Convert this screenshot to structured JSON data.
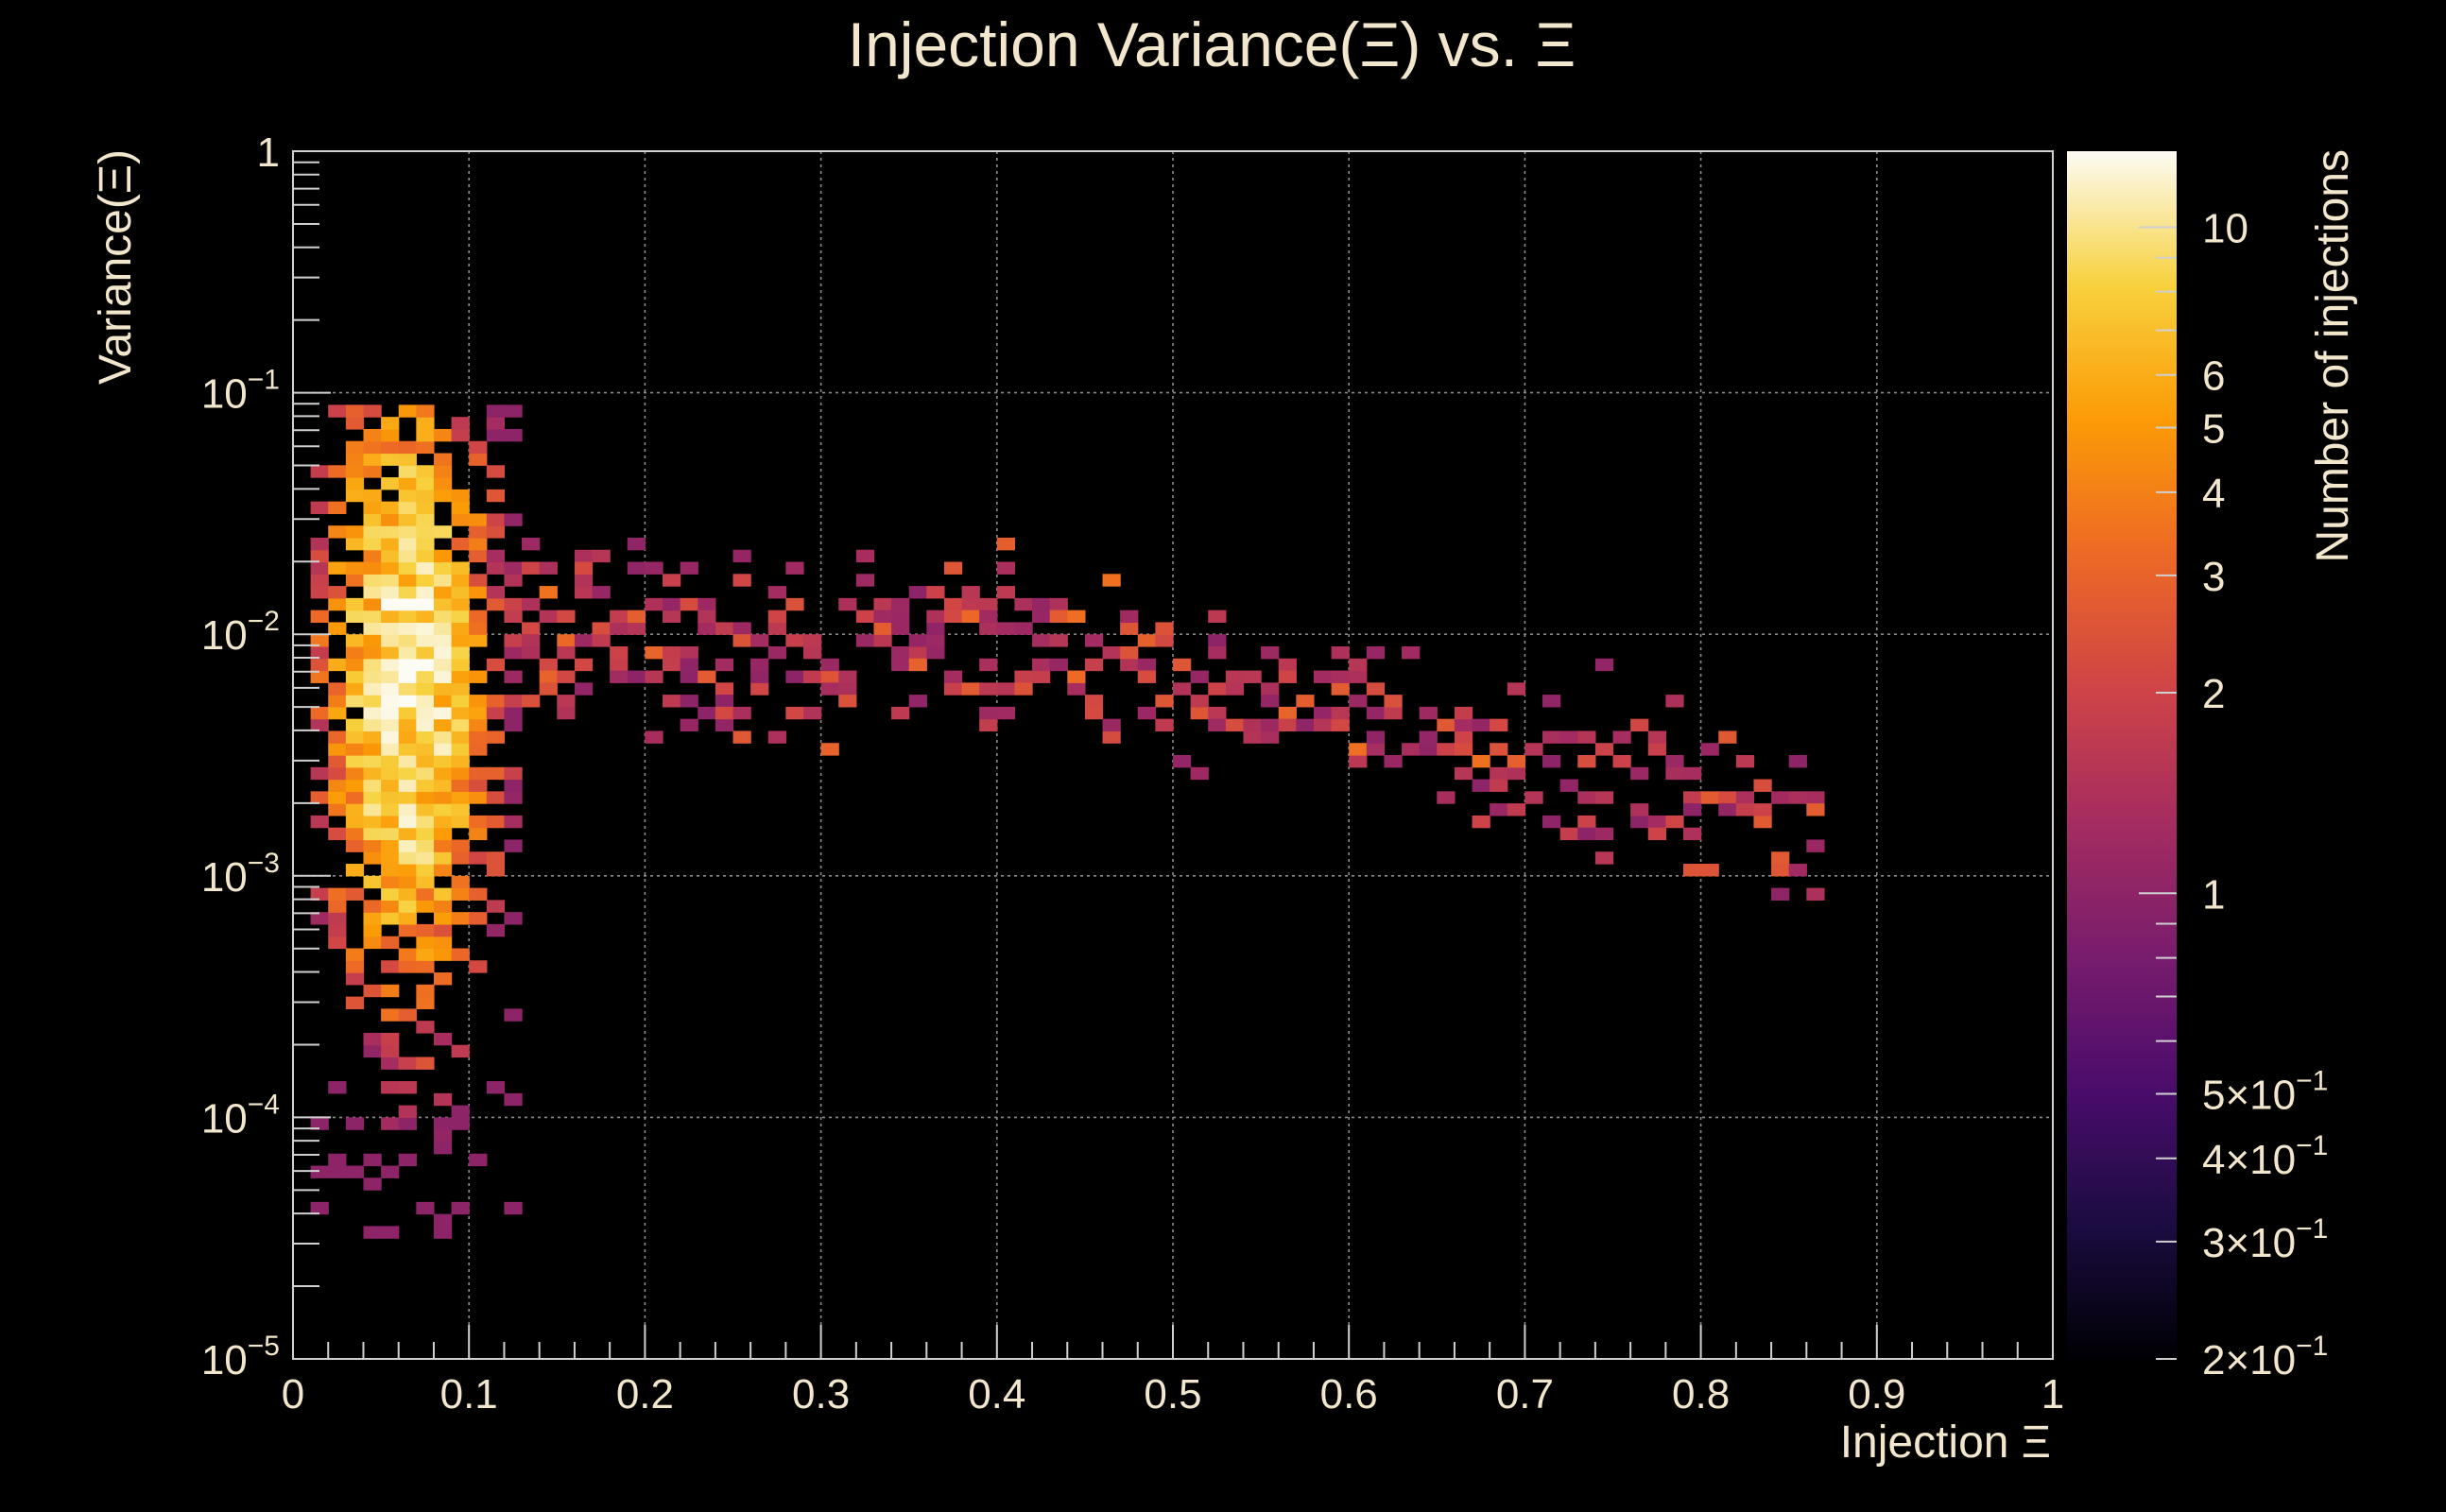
{
  "chart_data": {
    "type": "heatmap",
    "title": "Injection Variance(Ξ) vs. Ξ",
    "xlabel": "Injection Ξ",
    "ylabel": "Variance(Ξ)",
    "zlabel": "Number of injections",
    "xlim": [
      0,
      1
    ],
    "ylim": [
      1e-05,
      1
    ],
    "yscale": "log",
    "zscale": "log",
    "zlim": [
      0.2,
      13
    ],
    "grid": true,
    "colorbar_position": "right",
    "x_ticks": [
      "0",
      "0.1",
      "0.2",
      "0.3",
      "0.4",
      "0.5",
      "0.6",
      "0.7",
      "0.8",
      "0.9",
      "1"
    ],
    "y_ticks": [
      {
        "value": 1,
        "base": "1",
        "exp": ""
      },
      {
        "value": 0.1,
        "base": "10",
        "exp": "−1"
      },
      {
        "value": 0.01,
        "base": "10",
        "exp": "−2"
      },
      {
        "value": 0.001,
        "base": "10",
        "exp": "−3"
      },
      {
        "value": 0.0001,
        "base": "10",
        "exp": "−4"
      },
      {
        "value": 1e-05,
        "base": "10",
        "exp": "−5"
      }
    ],
    "z_ticks": [
      {
        "value": 10,
        "base": "10",
        "exp": ""
      },
      {
        "value": 6,
        "base": "6",
        "exp": ""
      },
      {
        "value": 5,
        "base": "5",
        "exp": ""
      },
      {
        "value": 4,
        "base": "4",
        "exp": ""
      },
      {
        "value": 3,
        "base": "3",
        "exp": ""
      },
      {
        "value": 2,
        "base": "2",
        "exp": ""
      },
      {
        "value": 1,
        "base": "1",
        "exp": ""
      },
      {
        "value": 0.5,
        "base": "5×10",
        "exp": "−1"
      },
      {
        "value": 0.4,
        "base": "4×10",
        "exp": "−1"
      },
      {
        "value": 0.3,
        "base": "3×10",
        "exp": "−1"
      },
      {
        "value": 0.2,
        "base": "2×10",
        "exp": "−1"
      }
    ],
    "colors": {
      "background": "#000000",
      "text": "#f2e6cc",
      "colormap": [
        "#000004",
        "#1b0c41",
        "#4a0c6b",
        "#781c6d",
        "#a52c60",
        "#cf4446",
        "#ed6925",
        "#fb9b06",
        "#f7d13d",
        "#fcfbf4"
      ]
    },
    "bin_size_x": 0.01,
    "bins_per_decade_y": 20,
    "cluster_left": {
      "x_range": [
        0.01,
        0.12
      ],
      "log_y_range": [
        -4.5,
        -1.1
      ],
      "peak_x": 0.065,
      "peak_log_y": -2.2,
      "peak_count": 13
    },
    "band": {
      "points": [
        {
          "x": 0.12,
          "y": 0.012
        },
        {
          "x": 0.2,
          "y": 0.009
        },
        {
          "x": 0.3,
          "y": 0.009
        },
        {
          "x": 0.4,
          "y": 0.009
        },
        {
          "x": 0.5,
          "y": 0.007
        },
        {
          "x": 0.6,
          "y": 0.005
        },
        {
          "x": 0.7,
          "y": 0.003
        },
        {
          "x": 0.8,
          "y": 0.002
        },
        {
          "x": 0.86,
          "y": 0.0015
        }
      ],
      "spread_decades": 0.35,
      "typical_count": 1.5
    }
  }
}
